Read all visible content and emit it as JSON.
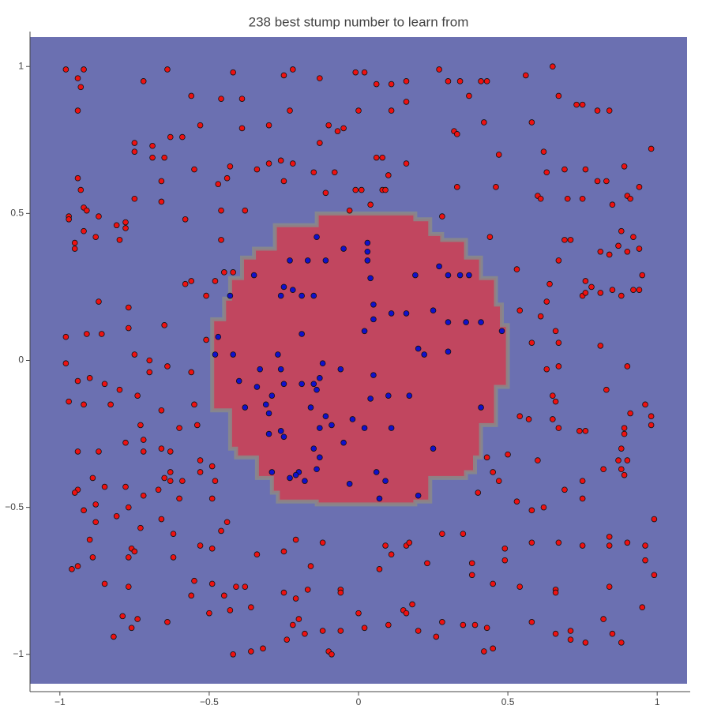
{
  "chart_data": {
    "type": "scatter",
    "title": "238 best stump number to learn from",
    "xlim": [
      -1.1,
      1.1
    ],
    "ylim": [
      -1.1,
      1.1
    ],
    "xticks": [
      {
        "value": -1,
        "label": "−1"
      },
      {
        "value": -0.5,
        "label": "−0.5"
      },
      0,
      0.5,
      1
    ],
    "yticks": [
      {
        "value": -1,
        "label": "−1"
      },
      {
        "value": -0.5,
        "label": "−0.5"
      },
      0,
      0.5,
      1
    ],
    "background_color": "#6b70b1",
    "region": {
      "color": "#c1465f",
      "x": [
        -0.14,
        0.19,
        0.19,
        0.24,
        0.24,
        0.28,
        0.28,
        0.36,
        0.36,
        0.41,
        0.41,
        0.46,
        0.46,
        0.48,
        0.48,
        0.5,
        0.5,
        0.46,
        0.46,
        0.41,
        0.41,
        0.39,
        0.39,
        0.36,
        0.36,
        0.24,
        0.24,
        0.19,
        0.19,
        -0.14,
        -0.14,
        -0.27,
        -0.27,
        -0.29,
        -0.29,
        -0.34,
        -0.34,
        -0.41,
        -0.41,
        -0.43,
        -0.43,
        -0.49,
        -0.49,
        -0.45,
        -0.45,
        -0.43,
        -0.43,
        -0.39,
        -0.39,
        -0.35,
        -0.35,
        -0.28,
        -0.28,
        -0.14
      ],
      "y": [
        0.5,
        0.5,
        0.48,
        0.48,
        0.43,
        0.43,
        0.41,
        0.41,
        0.35,
        0.35,
        0.28,
        0.28,
        0.19,
        0.19,
        0.12,
        0.12,
        -0.09,
        -0.09,
        -0.22,
        -0.22,
        -0.33,
        -0.33,
        -0.38,
        -0.38,
        -0.4,
        -0.4,
        -0.48,
        -0.48,
        -0.49,
        -0.49,
        -0.48,
        -0.48,
        -0.45,
        -0.45,
        -0.4,
        -0.4,
        -0.33,
        -0.33,
        -0.3,
        -0.3,
        -0.17,
        -0.17,
        0.14,
        0.14,
        0.21,
        0.21,
        0.28,
        0.28,
        0.35,
        0.35,
        0.38,
        0.38,
        0.46,
        0.46
      ]
    },
    "series": [
      {
        "color": "#ee1111",
        "x": [
          -0.98,
          -0.92,
          -0.94,
          -0.93,
          -0.94,
          -0.72,
          -0.64,
          -0.42,
          -0.25,
          -0.22,
          -0.13,
          -0.01,
          0.02,
          0.06,
          0.11,
          0.16,
          0.27,
          0.3,
          0.34,
          0.41,
          0.43,
          0.56,
          0.65,
          0.67,
          0.73,
          0.75,
          0.8,
          0.84,
          -0.56,
          -0.46,
          -0.39,
          -0.23,
          0.0,
          0.11,
          0.16,
          0.37,
          0.42,
          0.32,
          0.33,
          0.58,
          -0.1,
          -0.07,
          -0.05,
          -0.13,
          -0.3,
          -0.39,
          -0.53,
          -0.63,
          -0.59,
          -0.75,
          -0.69,
          -0.75,
          0.98,
          0.47,
          -0.65,
          -0.69,
          -0.55,
          -0.43,
          -0.47,
          -0.44,
          -0.3,
          -0.26,
          -0.22,
          -0.34,
          -0.25,
          -0.15,
          -0.08,
          -0.11,
          -0.01,
          0.01,
          0.08,
          0.09,
          0.08,
          0.06,
          0.1,
          0.16,
          0.33,
          0.46,
          0.62,
          0.63,
          0.69,
          0.76,
          0.8,
          0.83,
          0.89,
          0.94,
          0.9,
          0.6,
          0.61,
          0.7,
          0.75,
          0.85,
          0.91,
          -0.94,
          -0.93,
          -0.92,
          -0.66,
          -0.66,
          -0.75,
          -0.91,
          -0.87,
          -0.97,
          -0.97,
          -0.92,
          -0.88,
          -0.95,
          -0.95,
          -0.81,
          -0.78,
          -0.78,
          -0.8,
          -0.58,
          -0.46,
          -0.38,
          -0.03,
          0.04,
          0.28,
          0.44,
          0.53,
          -0.46,
          0.69,
          0.71,
          0.88,
          0.92,
          0.87,
          0.9,
          0.94,
          0.81,
          0.84,
          0.67,
          0.78,
          0.64,
          0.95,
          0.94,
          -0.42,
          -0.45,
          -0.56,
          -0.58,
          -0.48,
          -0.87,
          -0.77,
          -0.77,
          -0.91,
          -0.86,
          -0.65,
          -0.51,
          -0.51,
          -0.56,
          -0.7,
          -0.64,
          -0.7,
          -0.75,
          -0.98,
          -0.98,
          0.54,
          0.61,
          0.63,
          0.75,
          0.76,
          0.76,
          0.85,
          0.81,
          0.88,
          0.92,
          0.66,
          0.67,
          0.81,
          0.58,
          0.67,
          0.9,
          0.63,
          -0.94,
          -0.9,
          -0.85,
          -0.8,
          -0.74,
          -0.83,
          -0.97,
          -0.92,
          -0.66,
          -0.6,
          -0.54,
          -0.55,
          0.54,
          0.57,
          0.65,
          0.66,
          0.65,
          0.83,
          0.91,
          0.98,
          0.98,
          0.89,
          0.89,
          0.74,
          0.76,
          0.96,
          0.67,
          -0.73,
          -0.72,
          -0.78,
          -0.72,
          -0.94,
          -0.87,
          -0.66,
          -0.63,
          -0.53,
          -0.49,
          -0.48,
          -0.53,
          -0.65,
          -0.63,
          -0.63,
          -0.59,
          -0.6,
          -0.67,
          -0.72,
          -0.78,
          -0.89,
          -0.85,
          -0.94,
          -0.95,
          -0.92,
          -0.88,
          -0.77,
          -0.49,
          0.4,
          0.43,
          0.5,
          0.45,
          0.47,
          0.53,
          0.58,
          0.62,
          0.69,
          0.75,
          0.75,
          0.82,
          0.88,
          0.89,
          0.87,
          0.9,
          0.88,
          0.6,
          0.99,
          -0.88,
          -0.81,
          -0.73,
          -0.62,
          -0.66,
          -0.9,
          -0.76,
          -0.75,
          -0.62,
          -0.53,
          -0.49,
          -0.44,
          -0.46,
          -0.34,
          -0.25,
          -0.21,
          -0.12,
          -0.16,
          0.09,
          0.11,
          0.16,
          0.17,
          0.07,
          0.23,
          0.28,
          0.35,
          0.38,
          0.49,
          0.49,
          0.58,
          0.67,
          0.75,
          0.84,
          0.84,
          0.9,
          0.96,
          0.96,
          0.99,
          -0.96,
          -0.94,
          -0.89,
          -0.85,
          -0.77,
          -0.77,
          -0.55,
          -0.56,
          -0.49,
          -0.45,
          -0.41,
          -0.38,
          -0.25,
          -0.17,
          -0.06,
          -0.06,
          0.38,
          0.45,
          0.54,
          0.66,
          0.66,
          0.84,
          0.95,
          -0.79,
          -0.74,
          -0.76,
          -0.82,
          -0.64,
          -0.5,
          -0.43,
          -0.36,
          -0.21,
          -0.2,
          -0.22,
          -0.18,
          -0.12,
          -0.24,
          -0.06,
          0.0,
          0.02,
          0.1,
          0.15,
          0.16,
          0.18,
          0.2,
          0.26,
          0.28,
          0.43,
          0.39,
          0.35,
          0.58,
          0.66,
          0.71,
          0.71,
          0.76,
          0.85,
          0.82,
          0.88,
          -0.42,
          -0.36,
          -0.32,
          -0.1,
          -0.09,
          0.42,
          0.45
        ],
        "y": [
          0.99,
          0.99,
          0.96,
          0.93,
          0.85,
          0.95,
          0.99,
          0.98,
          0.97,
          0.99,
          0.96,
          0.98,
          0.98,
          0.94,
          0.94,
          0.95,
          0.99,
          0.95,
          0.95,
          0.95,
          0.95,
          0.97,
          1.0,
          0.9,
          0.87,
          0.87,
          0.85,
          0.85,
          0.9,
          0.89,
          0.89,
          0.85,
          0.85,
          0.85,
          0.88,
          0.9,
          0.81,
          0.78,
          0.77,
          0.81,
          0.8,
          0.78,
          0.79,
          0.74,
          0.8,
          0.79,
          0.8,
          0.76,
          0.76,
          0.74,
          0.73,
          0.71,
          0.72,
          0.7,
          0.69,
          0.69,
          0.65,
          0.66,
          0.6,
          0.62,
          0.67,
          0.68,
          0.67,
          0.65,
          0.61,
          0.64,
          0.64,
          0.57,
          0.58,
          0.58,
          0.58,
          0.58,
          0.69,
          0.69,
          0.63,
          0.67,
          0.59,
          0.59,
          0.71,
          0.64,
          0.65,
          0.65,
          0.61,
          0.61,
          0.66,
          0.59,
          0.56,
          0.56,
          0.55,
          0.55,
          0.55,
          0.53,
          0.55,
          0.62,
          0.58,
          0.52,
          0.61,
          0.54,
          0.55,
          0.51,
          0.49,
          0.49,
          0.48,
          0.44,
          0.42,
          0.4,
          0.38,
          0.46,
          0.47,
          0.45,
          0.41,
          0.48,
          0.51,
          0.51,
          0.51,
          0.53,
          0.49,
          0.42,
          0.31,
          0.41,
          0.41,
          0.41,
          0.44,
          0.42,
          0.39,
          0.37,
          0.38,
          0.37,
          0.36,
          0.34,
          0.25,
          0.26,
          0.29,
          0.24,
          0.3,
          0.3,
          0.27,
          0.26,
          0.27,
          0.2,
          0.18,
          0.11,
          0.09,
          0.09,
          0.12,
          0.22,
          0.07,
          -0.04,
          0.0,
          -0.02,
          -0.04,
          0.02,
          0.08,
          -0.01,
          0.17,
          0.15,
          0.2,
          0.22,
          0.23,
          0.27,
          0.24,
          0.23,
          0.22,
          0.24,
          0.1,
          0.06,
          0.05,
          0.06,
          -0.02,
          -0.02,
          -0.03,
          -0.07,
          -0.06,
          -0.08,
          -0.1,
          -0.12,
          -0.15,
          -0.14,
          -0.15,
          -0.17,
          -0.23,
          -0.22,
          -0.15,
          -0.19,
          -0.2,
          -0.12,
          -0.14,
          -0.2,
          -0.1,
          -0.18,
          -0.19,
          -0.22,
          -0.23,
          -0.25,
          -0.24,
          -0.24,
          -0.15,
          -0.23,
          -0.22,
          -0.27,
          -0.28,
          -0.31,
          -0.31,
          -0.31,
          -0.3,
          -0.31,
          -0.34,
          -0.36,
          -0.41,
          -0.38,
          -0.4,
          -0.41,
          -0.38,
          -0.41,
          -0.47,
          -0.44,
          -0.46,
          -0.43,
          -0.4,
          -0.43,
          -0.44,
          -0.45,
          -0.51,
          -0.49,
          -0.5,
          -0.47,
          -0.45,
          -0.33,
          -0.32,
          -0.38,
          -0.41,
          -0.48,
          -0.51,
          -0.5,
          -0.44,
          -0.41,
          -0.47,
          -0.37,
          -0.37,
          -0.39,
          -0.34,
          -0.34,
          -0.3,
          -0.34,
          -0.54,
          -0.55,
          -0.53,
          -0.57,
          -0.59,
          -0.54,
          -0.61,
          -0.64,
          -0.65,
          -0.67,
          -0.63,
          -0.64,
          -0.55,
          -0.58,
          -0.66,
          -0.65,
          -0.61,
          -0.62,
          -0.7,
          -0.63,
          -0.66,
          -0.63,
          -0.62,
          -0.71,
          -0.69,
          -0.59,
          -0.59,
          -0.69,
          -0.64,
          -0.68,
          -0.62,
          -0.62,
          -0.63,
          -0.6,
          -0.63,
          -0.62,
          -0.63,
          -0.68,
          -0.73,
          -0.71,
          -0.7,
          -0.67,
          -0.76,
          -0.77,
          -0.67,
          -0.75,
          -0.8,
          -0.76,
          -0.8,
          -0.77,
          -0.77,
          -0.79,
          -0.78,
          -0.78,
          -0.79,
          -0.73,
          -0.76,
          -0.77,
          -0.78,
          -0.79,
          -0.77,
          -0.84,
          -0.87,
          -0.88,
          -0.91,
          -0.94,
          -0.89,
          -0.86,
          -0.85,
          -0.84,
          -0.81,
          -0.88,
          -0.9,
          -0.93,
          -0.92,
          -0.95,
          -0.92,
          -0.86,
          -0.91,
          -0.9,
          -0.85,
          -0.86,
          -0.83,
          -0.92,
          -0.94,
          -0.89,
          -0.91,
          -0.9,
          -0.9,
          -0.89,
          -0.93,
          -0.92,
          -0.95,
          -0.96,
          -0.93,
          -0.88,
          -0.96,
          -1.0,
          -0.99,
          -0.98,
          -0.99,
          -1.0,
          -0.99,
          -0.98
        ]
      },
      {
        "color": "#1010cc",
        "x": [
          -0.14,
          -0.11,
          -0.23,
          -0.17,
          -0.05,
          0.03,
          0.03,
          0.03,
          0.04,
          -0.35,
          -0.22,
          -0.25,
          -0.26,
          -0.19,
          -0.15,
          -0.43,
          0.05,
          0.27,
          0.3,
          0.34,
          0.37,
          0.19,
          0.25,
          0.16,
          0.11,
          0.05,
          0.3,
          0.36,
          0.41,
          0.48,
          0.02,
          -0.19,
          -0.47,
          -0.48,
          -0.42,
          -0.27,
          0.2,
          0.22,
          0.3,
          -0.26,
          -0.12,
          -0.06,
          0.05,
          -0.33,
          -0.4,
          -0.25,
          -0.13,
          -0.15,
          -0.14,
          -0.19,
          -0.34,
          -0.29,
          -0.16,
          0.1,
          0.17,
          0.04,
          -0.38,
          -0.31,
          -0.3,
          -0.13,
          -0.11,
          -0.09,
          -0.02,
          0.11,
          -0.3,
          -0.26,
          -0.25,
          -0.05,
          -0.15,
          0.25,
          -0.13,
          -0.2,
          -0.14,
          -0.29,
          -0.21,
          -0.23,
          -0.18,
          0.06,
          0.09,
          -0.03,
          0.07,
          0.2,
          0.41,
          0.02
        ],
        "y": [
          0.42,
          0.34,
          0.34,
          0.34,
          0.38,
          0.4,
          0.37,
          0.34,
          0.28,
          0.29,
          0.24,
          0.25,
          0.22,
          0.22,
          0.22,
          0.22,
          0.19,
          0.32,
          0.29,
          0.29,
          0.29,
          0.29,
          0.17,
          0.16,
          0.16,
          0.14,
          0.13,
          0.13,
          0.13,
          0.1,
          0.1,
          0.09,
          0.08,
          0.02,
          0.02,
          0.02,
          0.04,
          0.02,
          0.03,
          -0.03,
          -0.01,
          -0.03,
          -0.05,
          -0.03,
          -0.07,
          -0.08,
          -0.06,
          -0.08,
          -0.1,
          -0.08,
          -0.09,
          -0.12,
          -0.16,
          -0.12,
          -0.12,
          -0.13,
          -0.16,
          -0.15,
          -0.18,
          -0.23,
          -0.19,
          -0.22,
          -0.2,
          -0.23,
          -0.25,
          -0.24,
          -0.26,
          -0.28,
          -0.3,
          -0.3,
          -0.33,
          -0.38,
          -0.37,
          -0.38,
          -0.39,
          -0.4,
          -0.41,
          -0.38,
          -0.41,
          -0.42,
          -0.47,
          -0.46,
          -0.16,
          -0.23
        ]
      }
    ]
  }
}
